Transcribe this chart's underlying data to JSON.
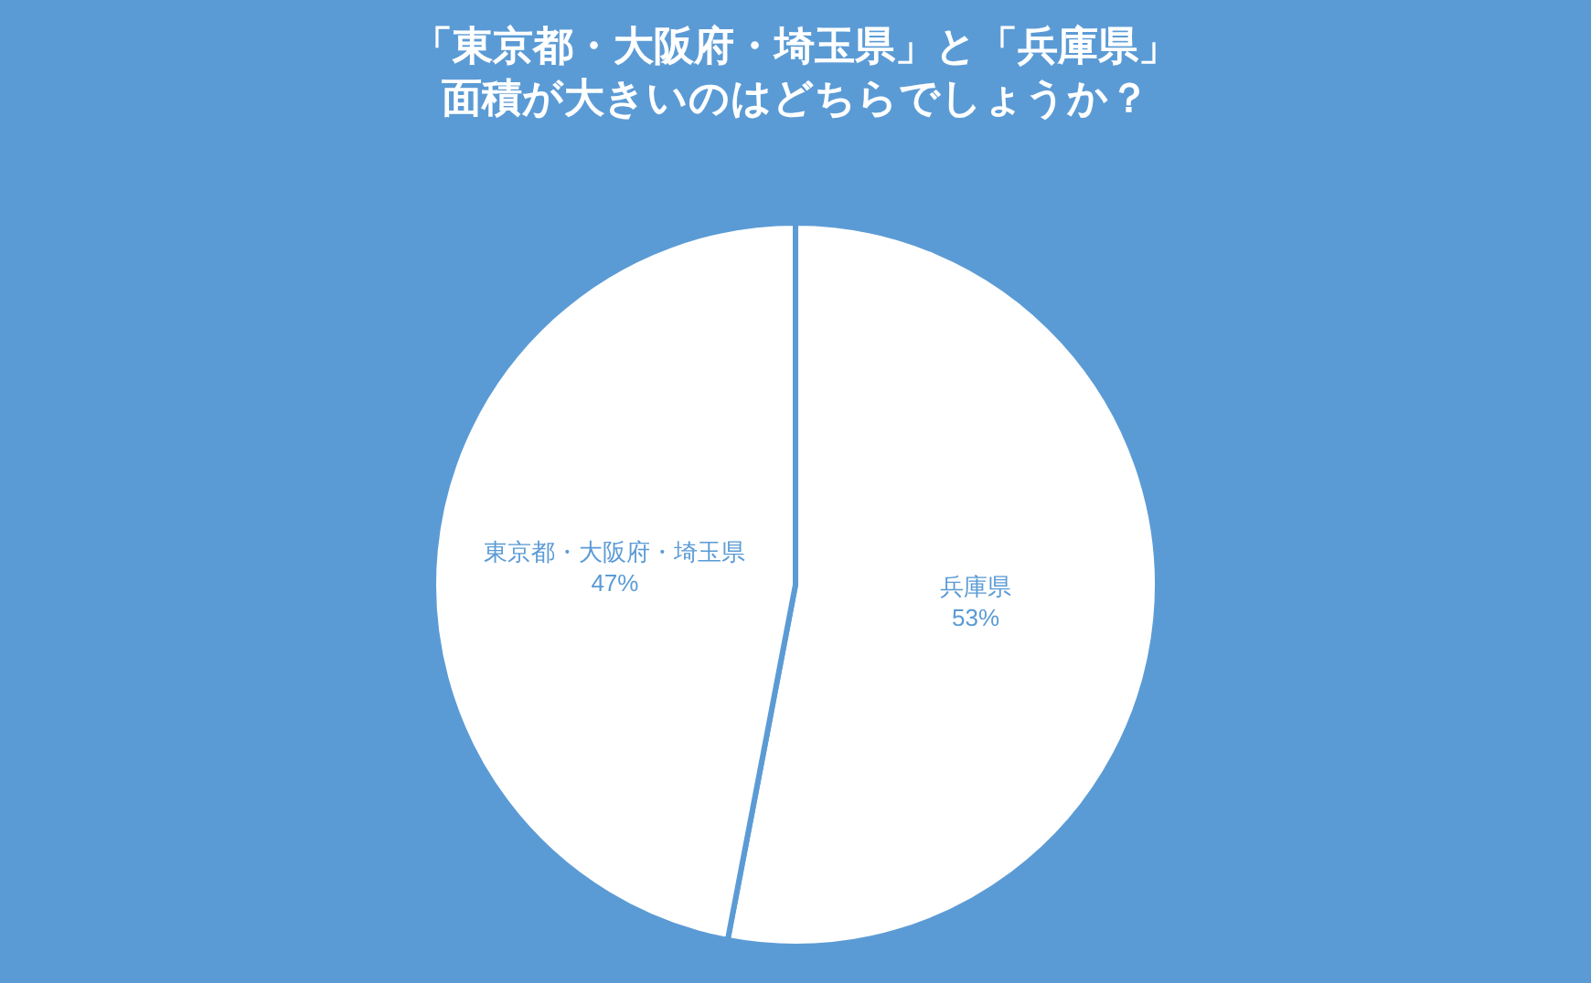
{
  "chart_data": {
    "type": "pie",
    "title": "「東京都・大阪府・埼玉県」と「兵庫県」",
    "subtitle": "面積が大きいのはどちらでしょうか？",
    "categories": [
      "兵庫県",
      "東京都・大阪府・埼玉県"
    ],
    "values": [
      53,
      47
    ],
    "value_labels": [
      "53%",
      "47%"
    ],
    "colors": [
      "#ffffff",
      "#ffffff"
    ],
    "legend": false
  }
}
